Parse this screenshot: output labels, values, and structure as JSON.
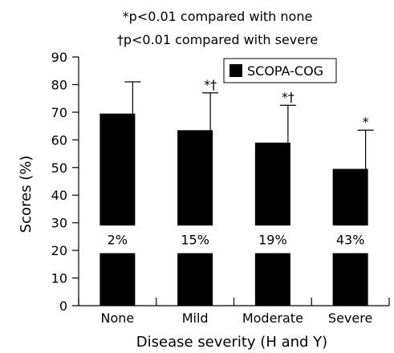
{
  "notes": [
    "*p<0.01 compared with none",
    "†p<0.01 compared with severe"
  ],
  "chart_data": {
    "type": "bar",
    "categories": [
      "None",
      "Mild",
      "Moderate",
      "Severe"
    ],
    "series": [
      {
        "name": "SCOPA-COG",
        "values": [
          69.5,
          63.5,
          59,
          49.5
        ],
        "error_upper": [
          81,
          77,
          72.5,
          63.5
        ],
        "color": "#000000"
      }
    ],
    "significance": [
      "",
      "*†",
      "*†",
      "*"
    ],
    "percent_labels": [
      "2%",
      "15%",
      "19%",
      "43%"
    ],
    "xlabel": "Disease severity (H and Y)",
    "ylabel": "Scores (%)",
    "ylim": [
      0,
      90
    ],
    "yticks": [
      0,
      10,
      20,
      30,
      40,
      50,
      60,
      70,
      80,
      90
    ],
    "grid": false,
    "legend_position": "top-right"
  }
}
